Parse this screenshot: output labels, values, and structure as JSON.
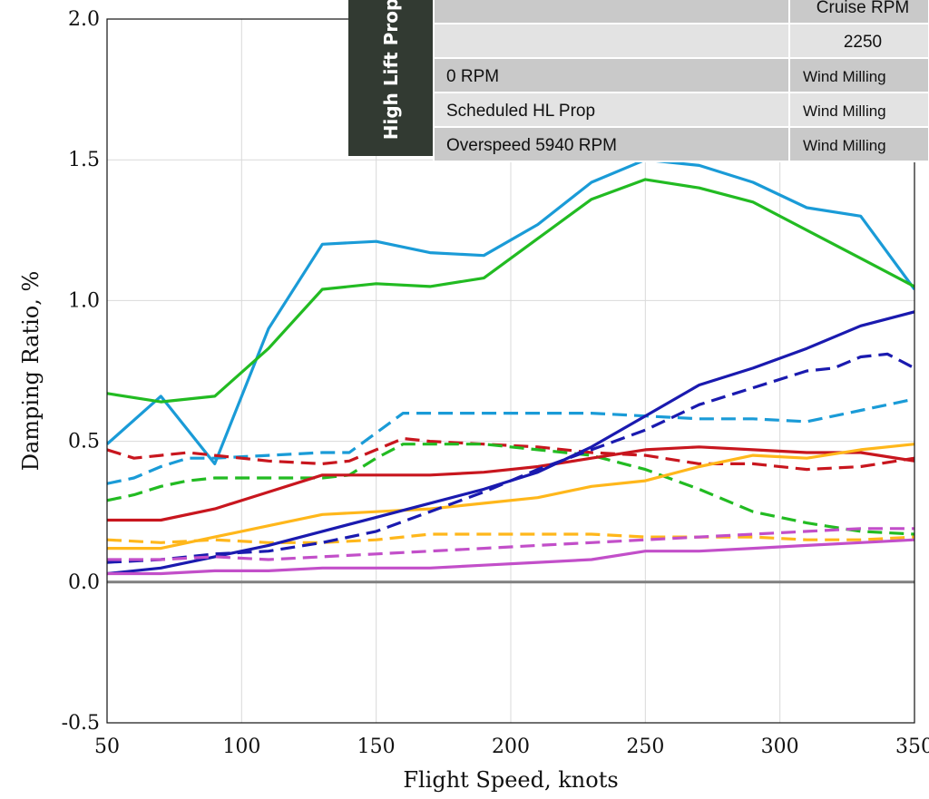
{
  "chart_data": {
    "type": "line",
    "title": "",
    "xlabel": "Flight Speed, knots",
    "ylabel": "Damping Ratio, %",
    "xlim": [
      50,
      350
    ],
    "ylim": [
      -0.5,
      2.0
    ],
    "x_ticks": [
      50,
      100,
      150,
      200,
      250,
      300,
      350
    ],
    "y_ticks": [
      -0.5,
      0.0,
      0.5,
      1.0,
      1.5,
      2.0
    ],
    "x_tick_labels": [
      "50",
      "100",
      "150",
      "200",
      "250",
      "300",
      "350"
    ],
    "y_tick_labels": [
      "-0.5",
      "0.0",
      "0.5",
      "1.0",
      "1.5",
      "2.0"
    ],
    "grid": true,
    "zero_line": true,
    "legend": {
      "placement": "top-right",
      "side_label": "High Lift Prop",
      "header_rows": [
        "Cruise RPM",
        "2250"
      ],
      "rows": [
        {
          "label": "0 RPM",
          "value": "Wind Milling"
        },
        {
          "label": "Scheduled HL Prop",
          "value": "Wind Milling"
        },
        {
          "label": "Overspeed 5940 RPM",
          "value": "Wind Milling"
        }
      ]
    },
    "series": [
      {
        "color": "#1a9bd7",
        "dash": false,
        "x": [
          50,
          70,
          90,
          110,
          130,
          150,
          170,
          190,
          210,
          230,
          250,
          270,
          290,
          310,
          330,
          350
        ],
        "y": [
          0.49,
          0.66,
          0.42,
          0.9,
          1.2,
          1.21,
          1.17,
          1.16,
          1.27,
          1.42,
          1.5,
          1.48,
          1.42,
          1.33,
          1.3,
          1.04
        ]
      },
      {
        "color": "#22bb22",
        "dash": false,
        "x": [
          50,
          70,
          90,
          110,
          130,
          150,
          170,
          190,
          210,
          230,
          250,
          270,
          290,
          310,
          330,
          350
        ],
        "y": [
          0.67,
          0.64,
          0.66,
          0.83,
          1.04,
          1.06,
          1.05,
          1.08,
          1.22,
          1.36,
          1.43,
          1.4,
          1.35,
          1.25,
          1.15,
          1.05
        ]
      },
      {
        "color": "#1a9bd7",
        "dash": true,
        "x": [
          50,
          60,
          70,
          80,
          90,
          110,
          130,
          140,
          150,
          160,
          170,
          190,
          210,
          230,
          250,
          270,
          290,
          310,
          330,
          350
        ],
        "y": [
          0.35,
          0.37,
          0.41,
          0.44,
          0.44,
          0.45,
          0.46,
          0.46,
          0.53,
          0.6,
          0.6,
          0.6,
          0.6,
          0.6,
          0.59,
          0.58,
          0.58,
          0.57,
          0.61,
          0.65
        ]
      },
      {
        "color": "#c8161e",
        "dash": true,
        "x": [
          50,
          60,
          70,
          80,
          90,
          110,
          130,
          140,
          150,
          160,
          170,
          190,
          210,
          230,
          250,
          270,
          290,
          310,
          330,
          350
        ],
        "y": [
          0.47,
          0.44,
          0.45,
          0.46,
          0.45,
          0.43,
          0.42,
          0.43,
          0.47,
          0.51,
          0.5,
          0.49,
          0.48,
          0.46,
          0.45,
          0.42,
          0.42,
          0.4,
          0.41,
          0.44
        ]
      },
      {
        "color": "#22bb22",
        "dash": true,
        "x": [
          50,
          60,
          70,
          80,
          90,
          110,
          130,
          140,
          150,
          160,
          170,
          190,
          210,
          230,
          250,
          270,
          290,
          310,
          330,
          350
        ],
        "y": [
          0.29,
          0.31,
          0.34,
          0.36,
          0.37,
          0.37,
          0.37,
          0.38,
          0.44,
          0.49,
          0.49,
          0.49,
          0.47,
          0.45,
          0.4,
          0.33,
          0.25,
          0.21,
          0.18,
          0.17
        ]
      },
      {
        "color": "#c8161e",
        "dash": false,
        "x": [
          50,
          70,
          90,
          110,
          130,
          150,
          170,
          190,
          210,
          230,
          250,
          270,
          290,
          310,
          330,
          350
        ],
        "y": [
          0.22,
          0.22,
          0.26,
          0.32,
          0.38,
          0.38,
          0.38,
          0.39,
          0.41,
          0.44,
          0.47,
          0.48,
          0.47,
          0.46,
          0.46,
          0.43
        ]
      },
      {
        "color": "#ffb71b",
        "dash": false,
        "x": [
          50,
          70,
          90,
          110,
          130,
          150,
          170,
          190,
          210,
          230,
          250,
          270,
          290,
          310,
          330,
          350
        ],
        "y": [
          0.12,
          0.12,
          0.16,
          0.2,
          0.24,
          0.25,
          0.26,
          0.28,
          0.3,
          0.34,
          0.36,
          0.41,
          0.45,
          0.44,
          0.47,
          0.49
        ]
      },
      {
        "color": "#ffb71b",
        "dash": true,
        "x": [
          50,
          70,
          90,
          110,
          130,
          150,
          170,
          190,
          210,
          230,
          250,
          270,
          290,
          310,
          330,
          350
        ],
        "y": [
          0.15,
          0.14,
          0.15,
          0.14,
          0.14,
          0.15,
          0.17,
          0.17,
          0.17,
          0.17,
          0.16,
          0.16,
          0.16,
          0.15,
          0.15,
          0.16
        ]
      },
      {
        "color": "#1a1aaf",
        "dash": false,
        "x": [
          50,
          70,
          90,
          110,
          130,
          150,
          170,
          190,
          210,
          230,
          250,
          270,
          290,
          310,
          330,
          350
        ],
        "y": [
          0.03,
          0.05,
          0.09,
          0.13,
          0.18,
          0.23,
          0.28,
          0.33,
          0.39,
          0.48,
          0.59,
          0.7,
          0.76,
          0.83,
          0.91,
          0.96
        ]
      },
      {
        "color": "#1a1aaf",
        "dash": true,
        "x": [
          50,
          70,
          90,
          110,
          130,
          150,
          170,
          190,
          210,
          230,
          250,
          270,
          290,
          310,
          320,
          330,
          340,
          350
        ],
        "y": [
          0.07,
          0.08,
          0.1,
          0.11,
          0.14,
          0.18,
          0.25,
          0.32,
          0.4,
          0.47,
          0.54,
          0.63,
          0.69,
          0.75,
          0.76,
          0.8,
          0.81,
          0.76
        ]
      },
      {
        "color": "#c24fc9",
        "dash": true,
        "x": [
          50,
          70,
          90,
          110,
          130,
          150,
          170,
          190,
          210,
          230,
          250,
          270,
          290,
          310,
          330,
          350
        ],
        "y": [
          0.08,
          0.08,
          0.09,
          0.08,
          0.09,
          0.1,
          0.11,
          0.12,
          0.13,
          0.14,
          0.15,
          0.16,
          0.17,
          0.18,
          0.19,
          0.19
        ]
      },
      {
        "color": "#c24fc9",
        "dash": false,
        "x": [
          50,
          70,
          90,
          110,
          130,
          150,
          170,
          190,
          210,
          230,
          250,
          270,
          290,
          310,
          330,
          350
        ],
        "y": [
          0.03,
          0.03,
          0.04,
          0.04,
          0.05,
          0.05,
          0.05,
          0.06,
          0.07,
          0.08,
          0.11,
          0.11,
          0.12,
          0.13,
          0.14,
          0.15
        ]
      }
    ]
  }
}
